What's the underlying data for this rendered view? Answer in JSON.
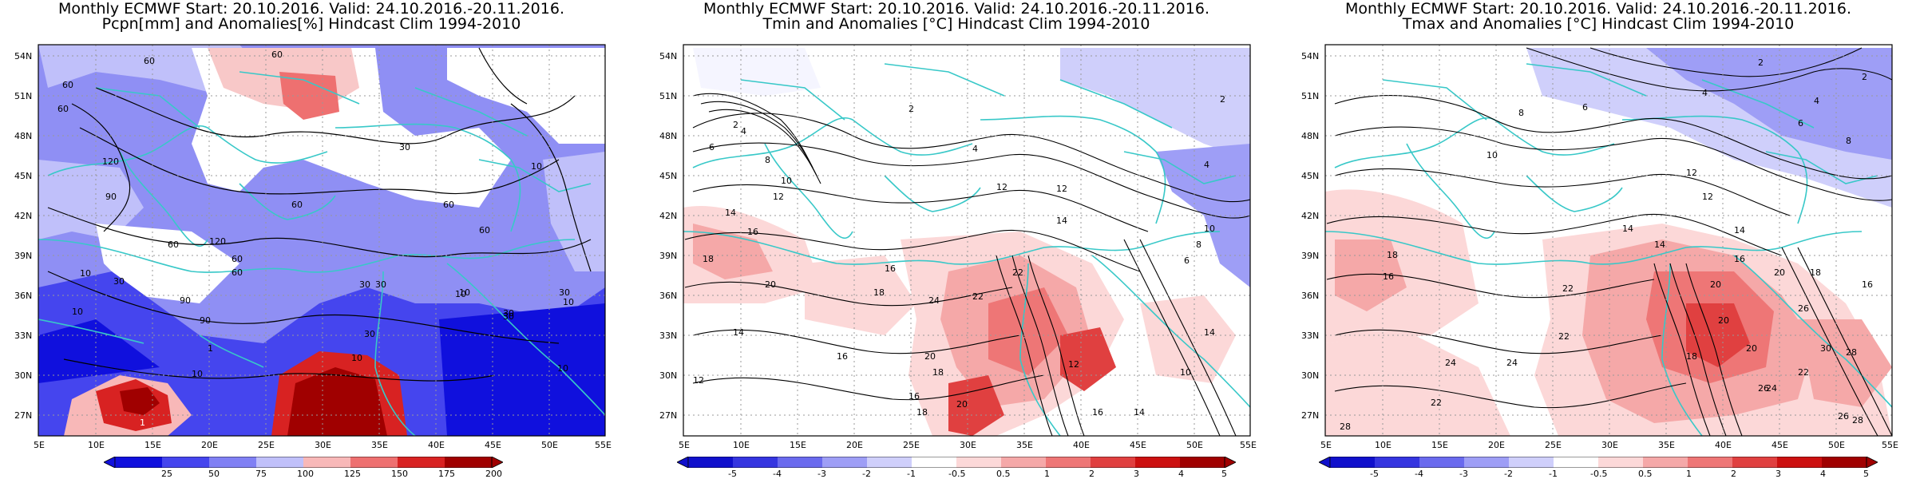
{
  "panels": [
    {
      "title_line1": "Monthly ECMWF Start: 20.10.2016. Valid: 24.10.2016.-20.11.2016.",
      "title_line2": "Pcpn[mm] and Anomalies[%] Hindcast Clim 1994-2010",
      "contour_labels": [
        "60",
        "60",
        "60",
        "60",
        "120",
        "90",
        "60",
        "120",
        "60",
        "60",
        "30",
        "60",
        "60",
        "30",
        "90",
        "60",
        "90",
        "30",
        "10",
        "10",
        "30",
        "10",
        "30",
        "30",
        "10",
        "10",
        "10",
        "30",
        "10",
        "1",
        "1",
        "10",
        "10",
        "30"
      ],
      "colorbar_ticks": [
        "25",
        "50",
        "75",
        "100",
        "125",
        "150",
        "175",
        "200"
      ]
    },
    {
      "title_line1": "Monthly ECMWF Start: 20.10.2016. Valid: 24.10.2016.-20.11.2016.",
      "title_line2": "Tmin and Anomalies [°C] Hindcast Clim 1994-2010",
      "contour_labels": [
        "2",
        "4",
        "6",
        "8",
        "10",
        "12",
        "14",
        "16",
        "18",
        "20",
        "22",
        "24",
        "2",
        "4",
        "12",
        "14",
        "16",
        "18",
        "20",
        "12",
        "14",
        "16",
        "18",
        "14",
        "12",
        "10",
        "8",
        "6",
        "4",
        "2",
        "16",
        "18",
        "20",
        "22",
        "14",
        "16",
        "12",
        "10"
      ],
      "colorbar_ticks": [
        "-5",
        "-4",
        "-3",
        "-2",
        "-1",
        "-0.5",
        "0.5",
        "1",
        "2",
        "3",
        "4",
        "5"
      ]
    },
    {
      "title_line1": "Monthly ECMWF Start: 20.10.2016. Valid: 24.10.2016.-20.11.2016.",
      "title_line2": "Tmax and Anomalies [°C] Hindcast Clim 1994-2010",
      "contour_labels": [
        "2",
        "4",
        "6",
        "8",
        "10",
        "12",
        "14",
        "16",
        "18",
        "20",
        "22",
        "24",
        "26",
        "28",
        "30",
        "2",
        "4",
        "6",
        "8",
        "12",
        "14",
        "16",
        "18",
        "20",
        "22",
        "24",
        "26",
        "28",
        "20",
        "22",
        "14",
        "16",
        "18",
        "20",
        "22",
        "24",
        "26",
        "28"
      ],
      "colorbar_ticks": [
        "-5",
        "-4",
        "-3",
        "-2",
        "-1",
        "-0.5",
        "0.5",
        "1",
        "2",
        "3",
        "4",
        "5"
      ]
    }
  ],
  "lat_labels": [
    "54N",
    "51N",
    "48N",
    "45N",
    "42N",
    "39N",
    "36N",
    "33N",
    "30N",
    "27N"
  ],
  "lon_labels": [
    "5E",
    "10E",
    "15E",
    "20E",
    "25E",
    "30E",
    "35E",
    "40E",
    "45E",
    "50E",
    "55E"
  ],
  "colors": {
    "coast": "#38c8c8",
    "pcpn_scale": [
      "#1010dd",
      "#4545ee",
      "#8080f4",
      "#c0c0fa",
      "#ffffff",
      "#f8b8b8",
      "#ee7070",
      "#d82222",
      "#a00000"
    ],
    "temp_scale": [
      "#1010cc",
      "#3535e0",
      "#6a6aee",
      "#9e9ef6",
      "#cfcffb",
      "#ffffff",
      "#fcd8d8",
      "#f5a8a8",
      "#ee7676",
      "#e04040",
      "#cc1010",
      "#a00000"
    ]
  }
}
